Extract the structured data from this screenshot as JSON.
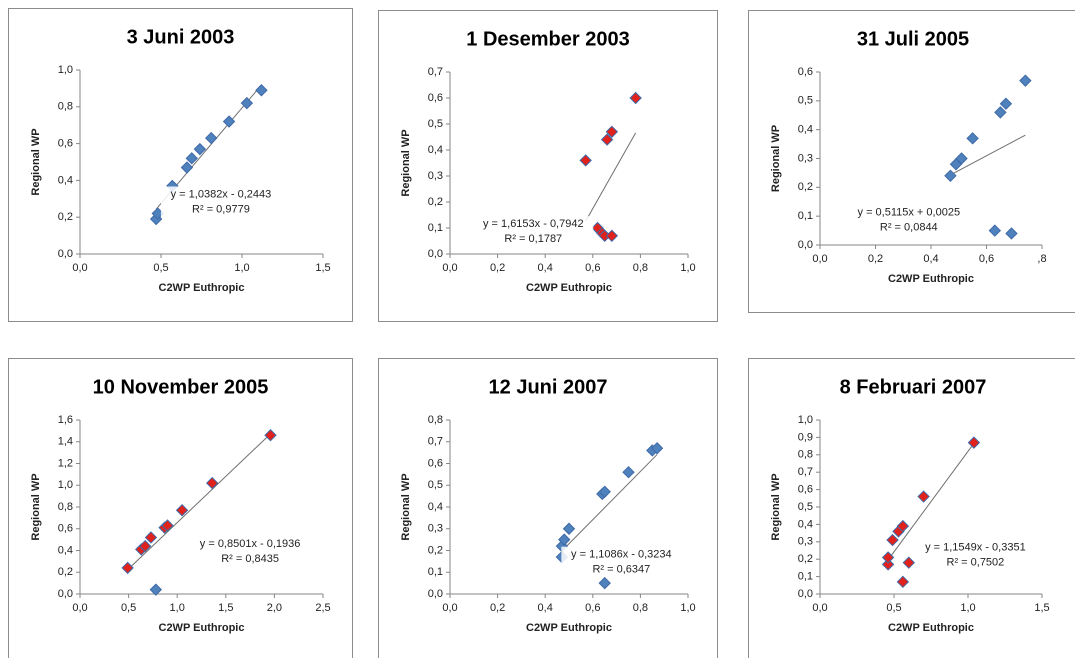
{
  "chart_data": [
    {
      "type": "scatter",
      "title": "3 Juni 2003",
      "x_label": "C2WP Euthropic",
      "y_label": "Regional WP",
      "xlim": [
        0,
        1.5
      ],
      "ylim": [
        0,
        1
      ],
      "xticks": [
        {
          "value": 0,
          "label": "0,0"
        },
        {
          "value": 0.5,
          "label": "0,5"
        },
        {
          "value": 1,
          "label": "1,0"
        },
        {
          "value": 1.5,
          "label": "1,5"
        }
      ],
      "yticks": [
        {
          "value": 0,
          "label": "0,0"
        },
        {
          "value": 0.2,
          "label": "0,2"
        },
        {
          "value": 0.4,
          "label": "0,4"
        },
        {
          "value": 0.6,
          "label": "0,6"
        },
        {
          "value": 0.8,
          "label": "0,8"
        },
        {
          "value": 1,
          "label": "1,0"
        }
      ],
      "series": [
        {
          "color": "#4f81bd",
          "x": [
            0.47,
            0.48,
            0.57,
            0.66,
            0.69,
            0.74,
            0.81,
            0.92,
            1.03,
            1.12
          ],
          "y": [
            0.19,
            0.22,
            0.37,
            0.47,
            0.52,
            0.57,
            0.63,
            0.72,
            0.82,
            0.89
          ]
        }
      ],
      "trendline": {
        "equation": "y = 1,0382x - 0,2443",
        "slope": 1.0382,
        "intercept": -0.2443,
        "r2_label": "R² = 0,9779",
        "r2": 0.9779
      }
    },
    {
      "type": "scatter",
      "title": "1 Desember 2003",
      "x_label": "C2WP Euthropic",
      "y_label": "Regional WP",
      "xlim": [
        0,
        1
      ],
      "ylim": [
        0,
        0.7
      ],
      "xticks": [
        {
          "value": 0,
          "label": "0,0"
        },
        {
          "value": 0.2,
          "label": "0,2"
        },
        {
          "value": 0.4,
          "label": "0,4"
        },
        {
          "value": 0.6,
          "label": "0,6"
        },
        {
          "value": 0.8,
          "label": "0,8"
        },
        {
          "value": 1,
          "label": "1,0"
        }
      ],
      "yticks": [
        {
          "value": 0,
          "label": "0,0"
        },
        {
          "value": 0.1,
          "label": "0,1"
        },
        {
          "value": 0.2,
          "label": "0,2"
        },
        {
          "value": 0.3,
          "label": "0,3"
        },
        {
          "value": 0.4,
          "label": "0,4"
        },
        {
          "value": 0.5,
          "label": "0,5"
        },
        {
          "value": 0.6,
          "label": "0,6"
        },
        {
          "value": 0.7,
          "label": "0,7"
        }
      ],
      "series": [
        {
          "color": "#e0211c",
          "x": [
            0.57,
            0.62,
            0.64,
            0.65,
            0.66,
            0.68,
            0.68,
            0.78
          ],
          "y": [
            0.36,
            0.1,
            0.08,
            0.07,
            0.44,
            0.47,
            0.07,
            0.6
          ]
        }
      ],
      "trendline": {
        "equation": "y = 1,6153x - 0,7942",
        "slope": 1.6153,
        "intercept": -0.7942,
        "r2_label": "R² = 0,1787",
        "r2": 0.1787
      }
    },
    {
      "type": "scatter",
      "title": "31 Juli 2005",
      "x_label": "C2WP Euthropic",
      "y_label": "Regional WP",
      "xlim": [
        0,
        0.8
      ],
      "ylim": [
        0,
        0.6
      ],
      "xticks": [
        {
          "value": 0,
          "label": "0,0"
        },
        {
          "value": 0.2,
          "label": "0,2"
        },
        {
          "value": 0.4,
          "label": "0,4"
        },
        {
          "value": 0.6,
          "label": "0,6"
        },
        {
          "value": 0.8,
          "label": ",8"
        }
      ],
      "yticks": [
        {
          "value": 0,
          "label": "0,0"
        },
        {
          "value": 0.1,
          "label": "0,1"
        },
        {
          "value": 0.2,
          "label": "0,2"
        },
        {
          "value": 0.3,
          "label": "0,3"
        },
        {
          "value": 0.4,
          "label": "0,4"
        },
        {
          "value": 0.5,
          "label": "0,5"
        },
        {
          "value": 0.6,
          "label": "0,6"
        }
      ],
      "series": [
        {
          "color": "#4f81bd",
          "x": [
            0.47,
            0.49,
            0.51,
            0.55,
            0.63,
            0.65,
            0.67,
            0.69,
            0.74
          ],
          "y": [
            0.24,
            0.28,
            0.3,
            0.37,
            0.05,
            0.46,
            0.49,
            0.04,
            0.57
          ]
        }
      ],
      "trendline": {
        "equation": "y = 0,5115x + 0,0025",
        "slope": 0.5115,
        "intercept": 0.0025,
        "r2_label": "R² = 0,0844",
        "r2": 0.0844
      }
    },
    {
      "type": "scatter",
      "title": "10 November 2005",
      "x_label": "C2WP Euthropic",
      "y_label": "Regional WP",
      "xlim": [
        0,
        2.5
      ],
      "ylim": [
        0,
        1.6
      ],
      "xticks": [
        {
          "value": 0,
          "label": "0,0"
        },
        {
          "value": 0.5,
          "label": "0,5"
        },
        {
          "value": 1,
          "label": "1,0"
        },
        {
          "value": 1.5,
          "label": "1,5"
        },
        {
          "value": 2,
          "label": "2,0"
        },
        {
          "value": 2.5,
          "label": "2,5"
        }
      ],
      "yticks": [
        {
          "value": 0,
          "label": "0,0"
        },
        {
          "value": 0.2,
          "label": "0,2"
        },
        {
          "value": 0.4,
          "label": "0,4"
        },
        {
          "value": 0.6,
          "label": "0,6"
        },
        {
          "value": 0.8,
          "label": "0,8"
        },
        {
          "value": 1,
          "label": "1,0"
        },
        {
          "value": 1.2,
          "label": "1,2"
        },
        {
          "value": 1.4,
          "label": "1,4"
        },
        {
          "value": 1.6,
          "label": "1,6"
        }
      ],
      "series": [
        {
          "color": "#e0211c",
          "x": [
            0.49,
            0.63,
            0.67,
            0.73,
            0.87,
            0.9,
            1.05,
            1.36,
            1.96
          ],
          "y": [
            0.24,
            0.41,
            0.44,
            0.52,
            0.61,
            0.63,
            0.77,
            1.02,
            1.46
          ]
        },
        {
          "color": "#4f81bd",
          "x": [
            0.78
          ],
          "y": [
            0.04
          ]
        }
      ],
      "trendline": {
        "equation": "y = 0,8501x - 0,1936",
        "slope": 0.8501,
        "intercept": -0.1936,
        "r2_label": "R² = 0,8435",
        "r2": 0.8435
      }
    },
    {
      "type": "scatter",
      "title": "12 Juni 2007",
      "x_label": "C2WP Euthropic",
      "y_label": "Regional WP",
      "xlim": [
        0,
        1
      ],
      "ylim": [
        0,
        0.8
      ],
      "xticks": [
        {
          "value": 0,
          "label": "0,0"
        },
        {
          "value": 0.2,
          "label": "0,2"
        },
        {
          "value": 0.4,
          "label": "0,4"
        },
        {
          "value": 0.6,
          "label": "0,6"
        },
        {
          "value": 0.8,
          "label": "0,8"
        },
        {
          "value": 1,
          "label": "1,0"
        }
      ],
      "yticks": [
        {
          "value": 0,
          "label": "0,0"
        },
        {
          "value": 0.1,
          "label": "0,1"
        },
        {
          "value": 0.2,
          "label": "0,2"
        },
        {
          "value": 0.3,
          "label": "0,3"
        },
        {
          "value": 0.4,
          "label": "0,4"
        },
        {
          "value": 0.5,
          "label": "0,5"
        },
        {
          "value": 0.6,
          "label": "0,6"
        },
        {
          "value": 0.7,
          "label": "0,7"
        },
        {
          "value": 0.8,
          "label": "0,8"
        }
      ],
      "series": [
        {
          "color": "#4f81bd",
          "x": [
            0.47,
            0.47,
            0.48,
            0.5,
            0.64,
            0.65,
            0.65,
            0.75,
            0.85,
            0.87
          ],
          "y": [
            0.17,
            0.22,
            0.25,
            0.3,
            0.46,
            0.47,
            0.05,
            0.56,
            0.66,
            0.67
          ]
        }
      ],
      "trendline": {
        "equation": "y = 1,1086x - 0,3234",
        "slope": 1.1086,
        "intercept": -0.3234,
        "r2_label": "R² = 0,6347",
        "r2": 0.6347
      }
    },
    {
      "type": "scatter",
      "title": "8 Februari 2007",
      "x_label": "C2WP Euthropic",
      "y_label": "Regional WP",
      "xlim": [
        0,
        1.5
      ],
      "ylim": [
        0,
        1
      ],
      "xticks": [
        {
          "value": 0,
          "label": "0,0"
        },
        {
          "value": 0.5,
          "label": "0,5"
        },
        {
          "value": 1,
          "label": "1,0"
        },
        {
          "value": 1.5,
          "label": "1,5"
        }
      ],
      "yticks": [
        {
          "value": 0,
          "label": "0,0"
        },
        {
          "value": 0.1,
          "label": "0,1"
        },
        {
          "value": 0.2,
          "label": "0,2"
        },
        {
          "value": 0.3,
          "label": "0,3"
        },
        {
          "value": 0.4,
          "label": "0,4"
        },
        {
          "value": 0.5,
          "label": "0,5"
        },
        {
          "value": 0.6,
          "label": "0,6"
        },
        {
          "value": 0.7,
          "label": "0,7"
        },
        {
          "value": 0.8,
          "label": "0,8"
        },
        {
          "value": 0.9,
          "label": "0,9"
        },
        {
          "value": 1,
          "label": "1,0"
        }
      ],
      "series": [
        {
          "color": "#e0211c",
          "x": [
            0.46,
            0.46,
            0.49,
            0.53,
            0.56,
            0.56,
            0.6,
            0.7,
            1.04
          ],
          "y": [
            0.17,
            0.21,
            0.31,
            0.36,
            0.39,
            0.07,
            0.18,
            0.56,
            0.87
          ]
        }
      ],
      "trendline": {
        "equation": "y = 1,1549x - 0,3351",
        "slope": 1.1549,
        "intercept": -0.3351,
        "r2_label": "R² = 0,7502",
        "r2": 0.7502
      }
    }
  ]
}
